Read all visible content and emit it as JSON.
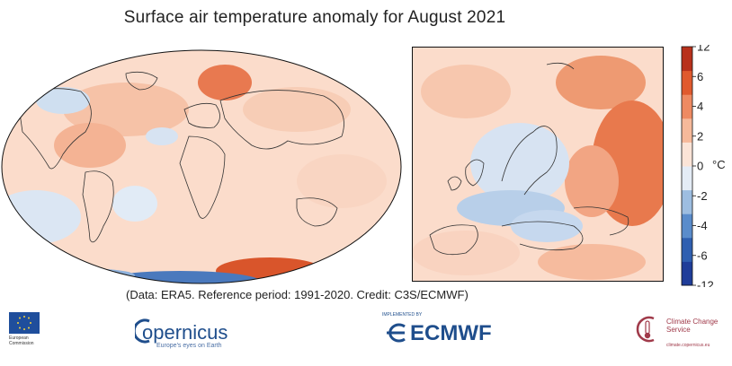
{
  "title": "Surface air temperature anomaly for August 2021",
  "credit": "(Data: ERA5.  Reference period: 1991-2020.  Credit: C3S/ECMWF)",
  "colorbar": {
    "unit": "°C",
    "ticks": [
      "12",
      "6",
      "4",
      "2",
      "0",
      "-2",
      "-4",
      "-6",
      "-12"
    ],
    "colors": [
      "#1f3d99",
      "#2f5fb0",
      "#5a8ccb",
      "#9dbde0",
      "#e4ecf6",
      "#fbe4d7",
      "#f6b99a",
      "#ee8a62",
      "#e05a2e",
      "#b8311c"
    ]
  },
  "maps": [
    {
      "name": "world",
      "region": "Global"
    },
    {
      "name": "europe",
      "region": "Europe"
    }
  ],
  "logos": {
    "eu_text": "European Commission",
    "copernicus_word": "opernicus",
    "copernicus_sub": "Europe's eyes on Earth",
    "ecmwf_sub": "IMPLEMENTED BY",
    "ecmwf_word": "ECMWF",
    "c3s_word": "Climate Change Service",
    "c3s_sub": "climate.copernicus.eu"
  }
}
